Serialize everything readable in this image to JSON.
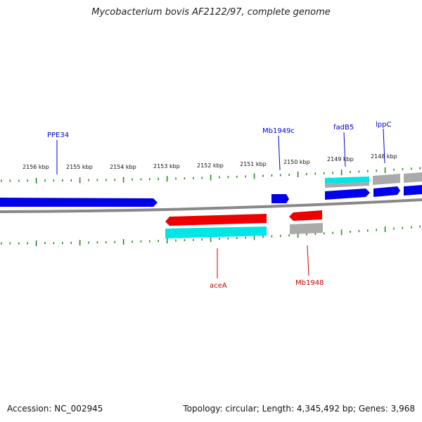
{
  "title": "Mycobacterium bovis AF2122/97, complete genome",
  "footer": {
    "accession": "Accession: NC_002945",
    "summary": "Topology: circular; Length: 4,345,492 bp; Genes: 3,968"
  },
  "colors": {
    "forward_cds": "#0000ee",
    "reverse_cds": "#ee0000",
    "feature_cyan": "#00e5e5",
    "feature_grey": "#aaaaaa",
    "backbone": "#888888",
    "ticks": "#228b22",
    "label_forward": "#0000cc",
    "label_reverse": "#cc0000"
  },
  "kbp_ticks": [
    "2156 kbp",
    "2155 kbp",
    "2154 kbp",
    "2153 kbp",
    "2152 kbp",
    "2151 kbp",
    "2150 kbp",
    "2149 kbp",
    "2148 kbp"
  ],
  "gene_labels": {
    "ppe34": "PPE34",
    "mb1949c": "Mb1949c",
    "fadb5": "fadB5",
    "lppc": "lppC",
    "acea": "aceA",
    "mb1948": "Mb1948"
  }
}
